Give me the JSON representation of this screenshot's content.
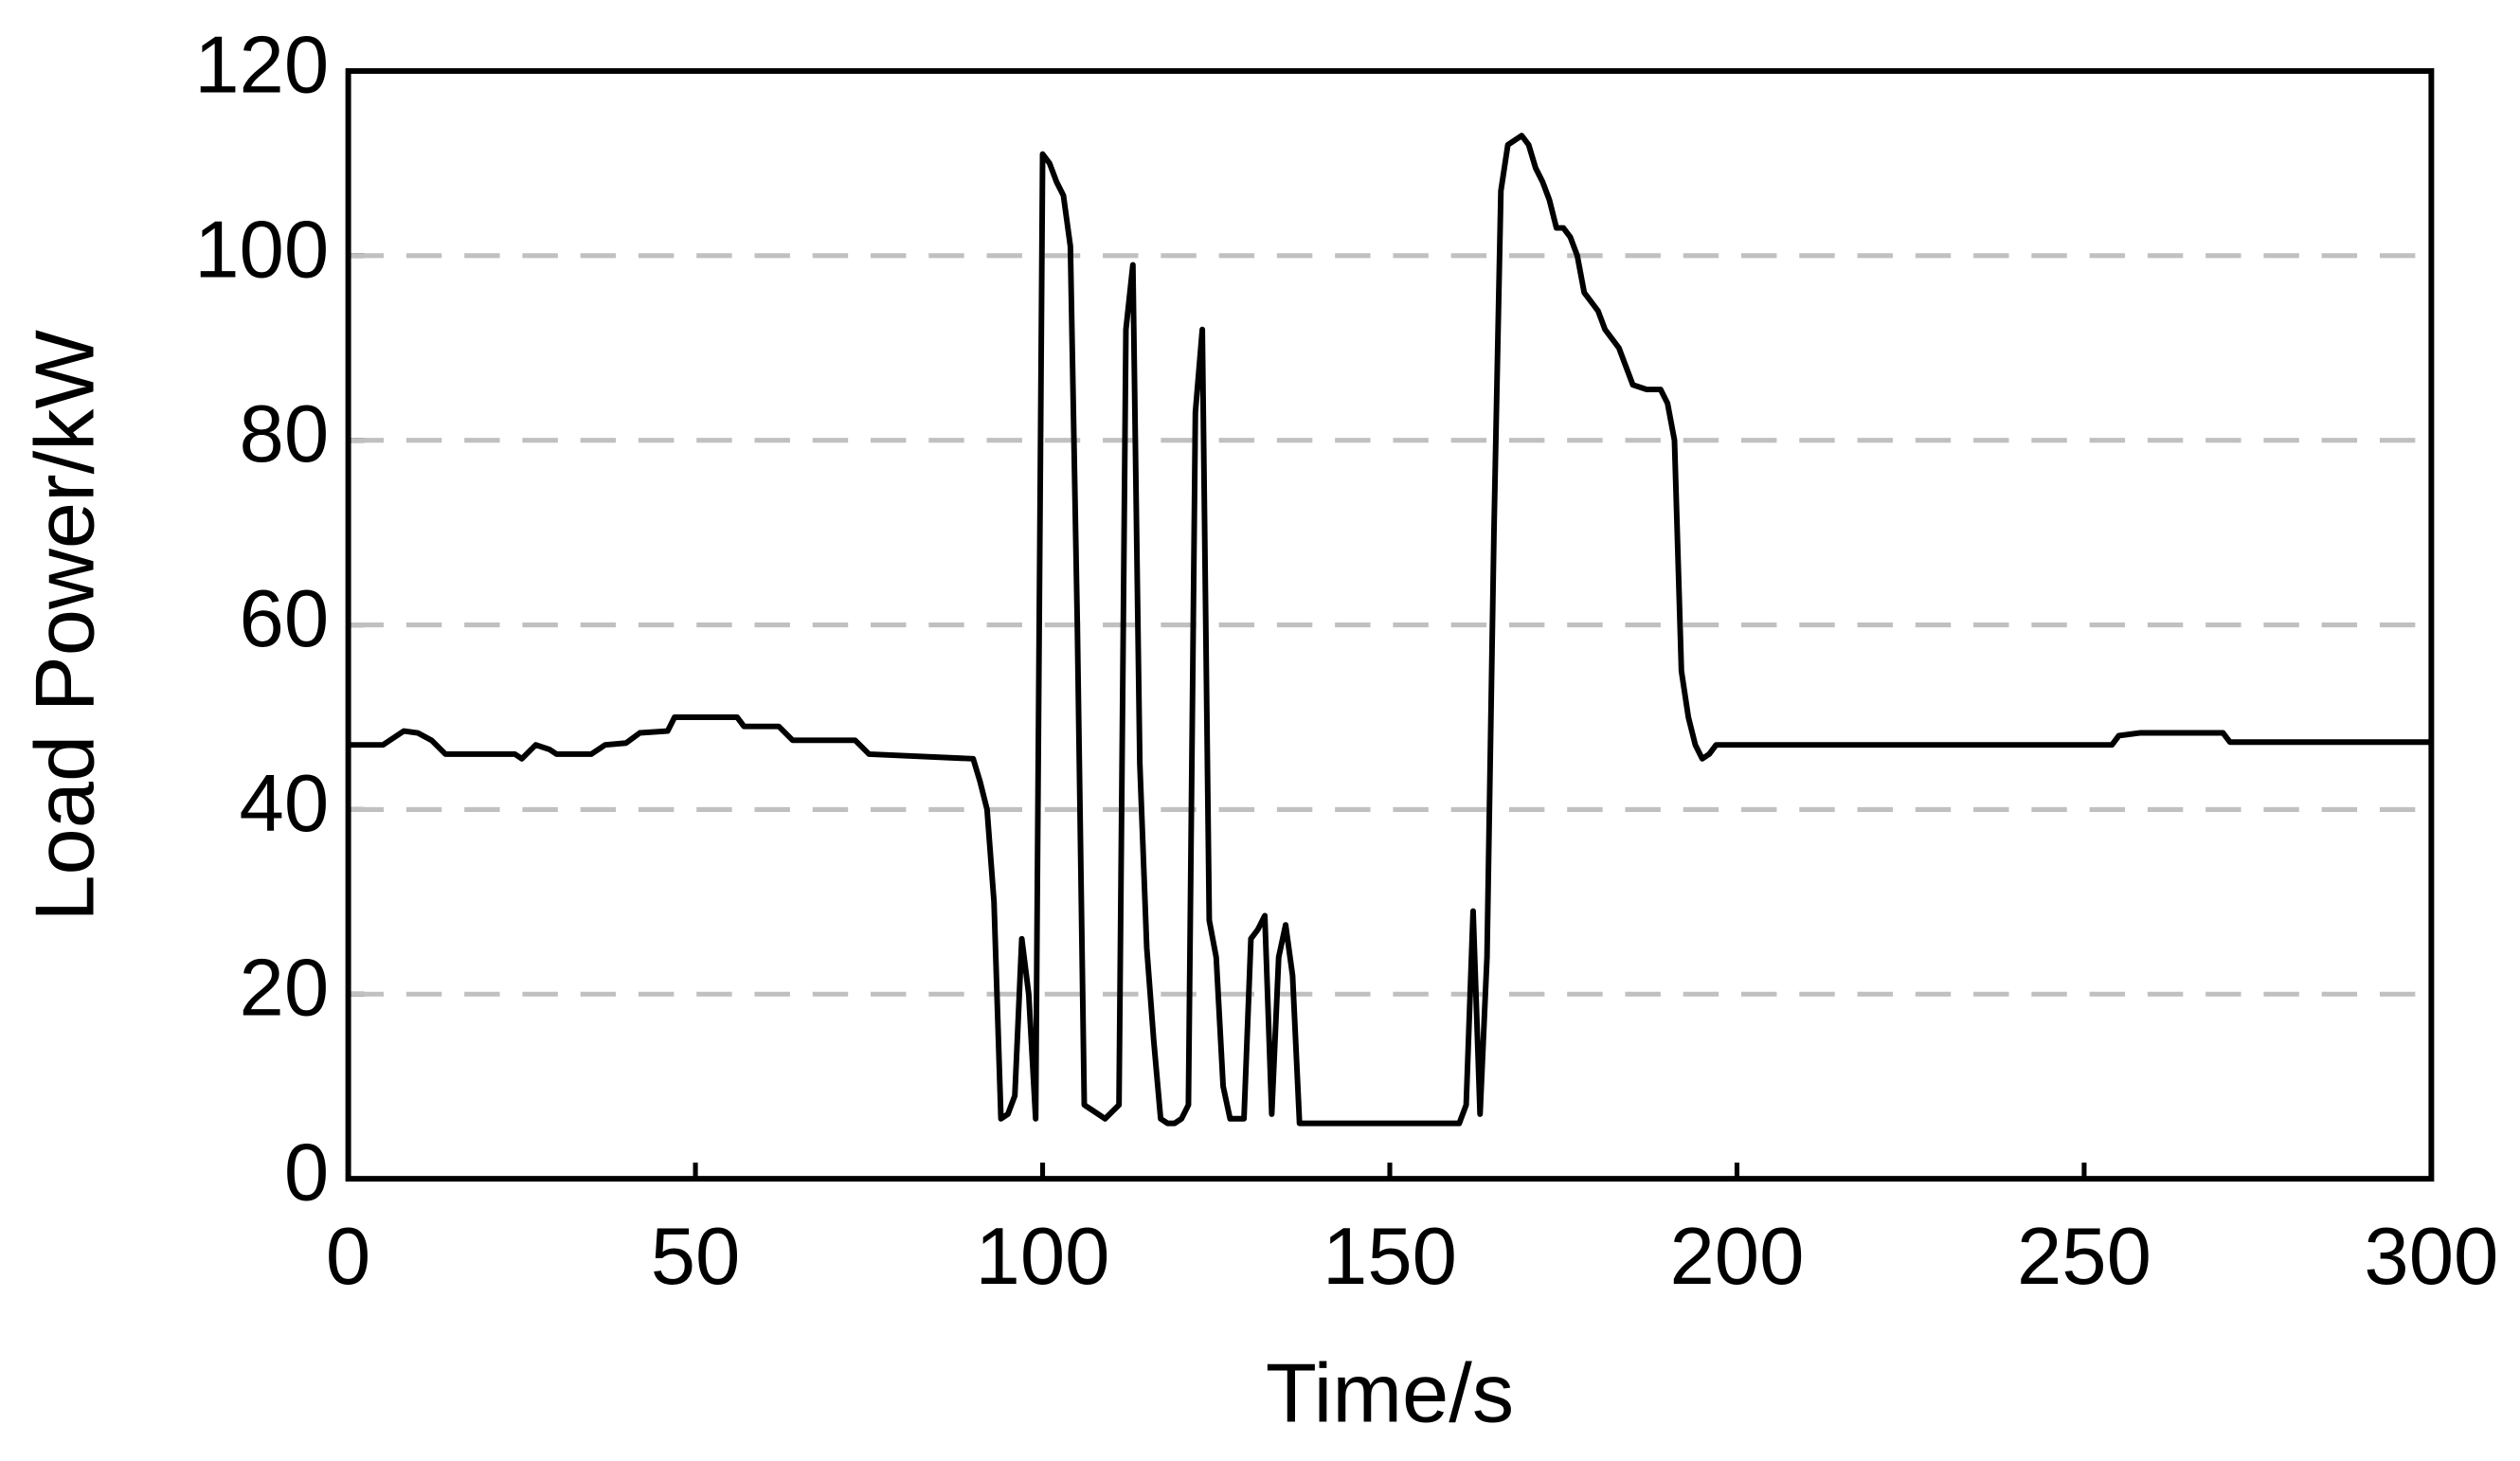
{
  "chart_data": {
    "type": "line",
    "xlabel": "Time/s",
    "ylabel": "Load Power/kW",
    "xlim": [
      0,
      300
    ],
    "xticks": [
      0,
      50,
      100,
      150,
      200,
      250,
      300
    ],
    "ylim": [
      0,
      120
    ],
    "yticks": [
      0,
      20,
      40,
      60,
      80,
      100,
      120
    ],
    "grid": true,
    "series": [
      {
        "color": "#000000",
        "x": [
          0,
          5,
          8,
          10,
          12,
          14,
          24,
          25,
          27,
          29,
          30,
          35,
          37,
          40,
          42,
          46,
          47,
          56,
          57,
          62,
          64,
          73,
          75,
          90,
          91,
          92,
          93,
          94,
          95,
          96,
          97,
          98,
          99,
          100,
          101,
          102,
          103,
          104,
          105,
          106,
          107,
          109,
          111,
          112,
          113,
          114,
          115,
          116,
          117,
          118,
          119,
          120,
          121,
          122,
          123,
          124,
          125,
          126,
          127,
          129,
          130,
          131,
          132,
          133,
          134,
          135,
          136,
          137,
          160,
          161,
          162,
          163,
          164,
          165,
          166,
          167,
          168,
          169,
          170,
          171,
          172,
          173,
          174,
          175,
          176,
          177,
          178,
          179,
          180,
          181,
          183,
          184,
          185,
          187,
          189,
          190,
          191,
          192,
          193,
          194,
          195,
          196,
          197,
          254,
          255,
          258,
          270,
          271,
          300
        ],
        "values": [
          47,
          47,
          48.5,
          48.3,
          47.5,
          46,
          46,
          45.5,
          47,
          46.5,
          46,
          46,
          47,
          47.2,
          48.3,
          48.5,
          50,
          50,
          49,
          49,
          47.5,
          47.5,
          46,
          45.5,
          43,
          40,
          30,
          6.5,
          7,
          9,
          26,
          20,
          6.5,
          111,
          110,
          108,
          106.5,
          101,
          60,
          8,
          7.5,
          6.5,
          8,
          92,
          99,
          45,
          25,
          15,
          6.5,
          6,
          6,
          6.5,
          8,
          83,
          92,
          28,
          24,
          10,
          6.5,
          6.5,
          26,
          27,
          28.5,
          7,
          24,
          27.5,
          22,
          6,
          6,
          8,
          29,
          7,
          24,
          70,
          107,
          112,
          112.5,
          113,
          112,
          109.5,
          108,
          106,
          103,
          103,
          102,
          100,
          96,
          95,
          94,
          92,
          90,
          88,
          86,
          85.5,
          85.5,
          84,
          80,
          55,
          50,
          47,
          45.5,
          46,
          47,
          47,
          48,
          48.3,
          48.3,
          47.3,
          47.3
        ]
      }
    ]
  }
}
